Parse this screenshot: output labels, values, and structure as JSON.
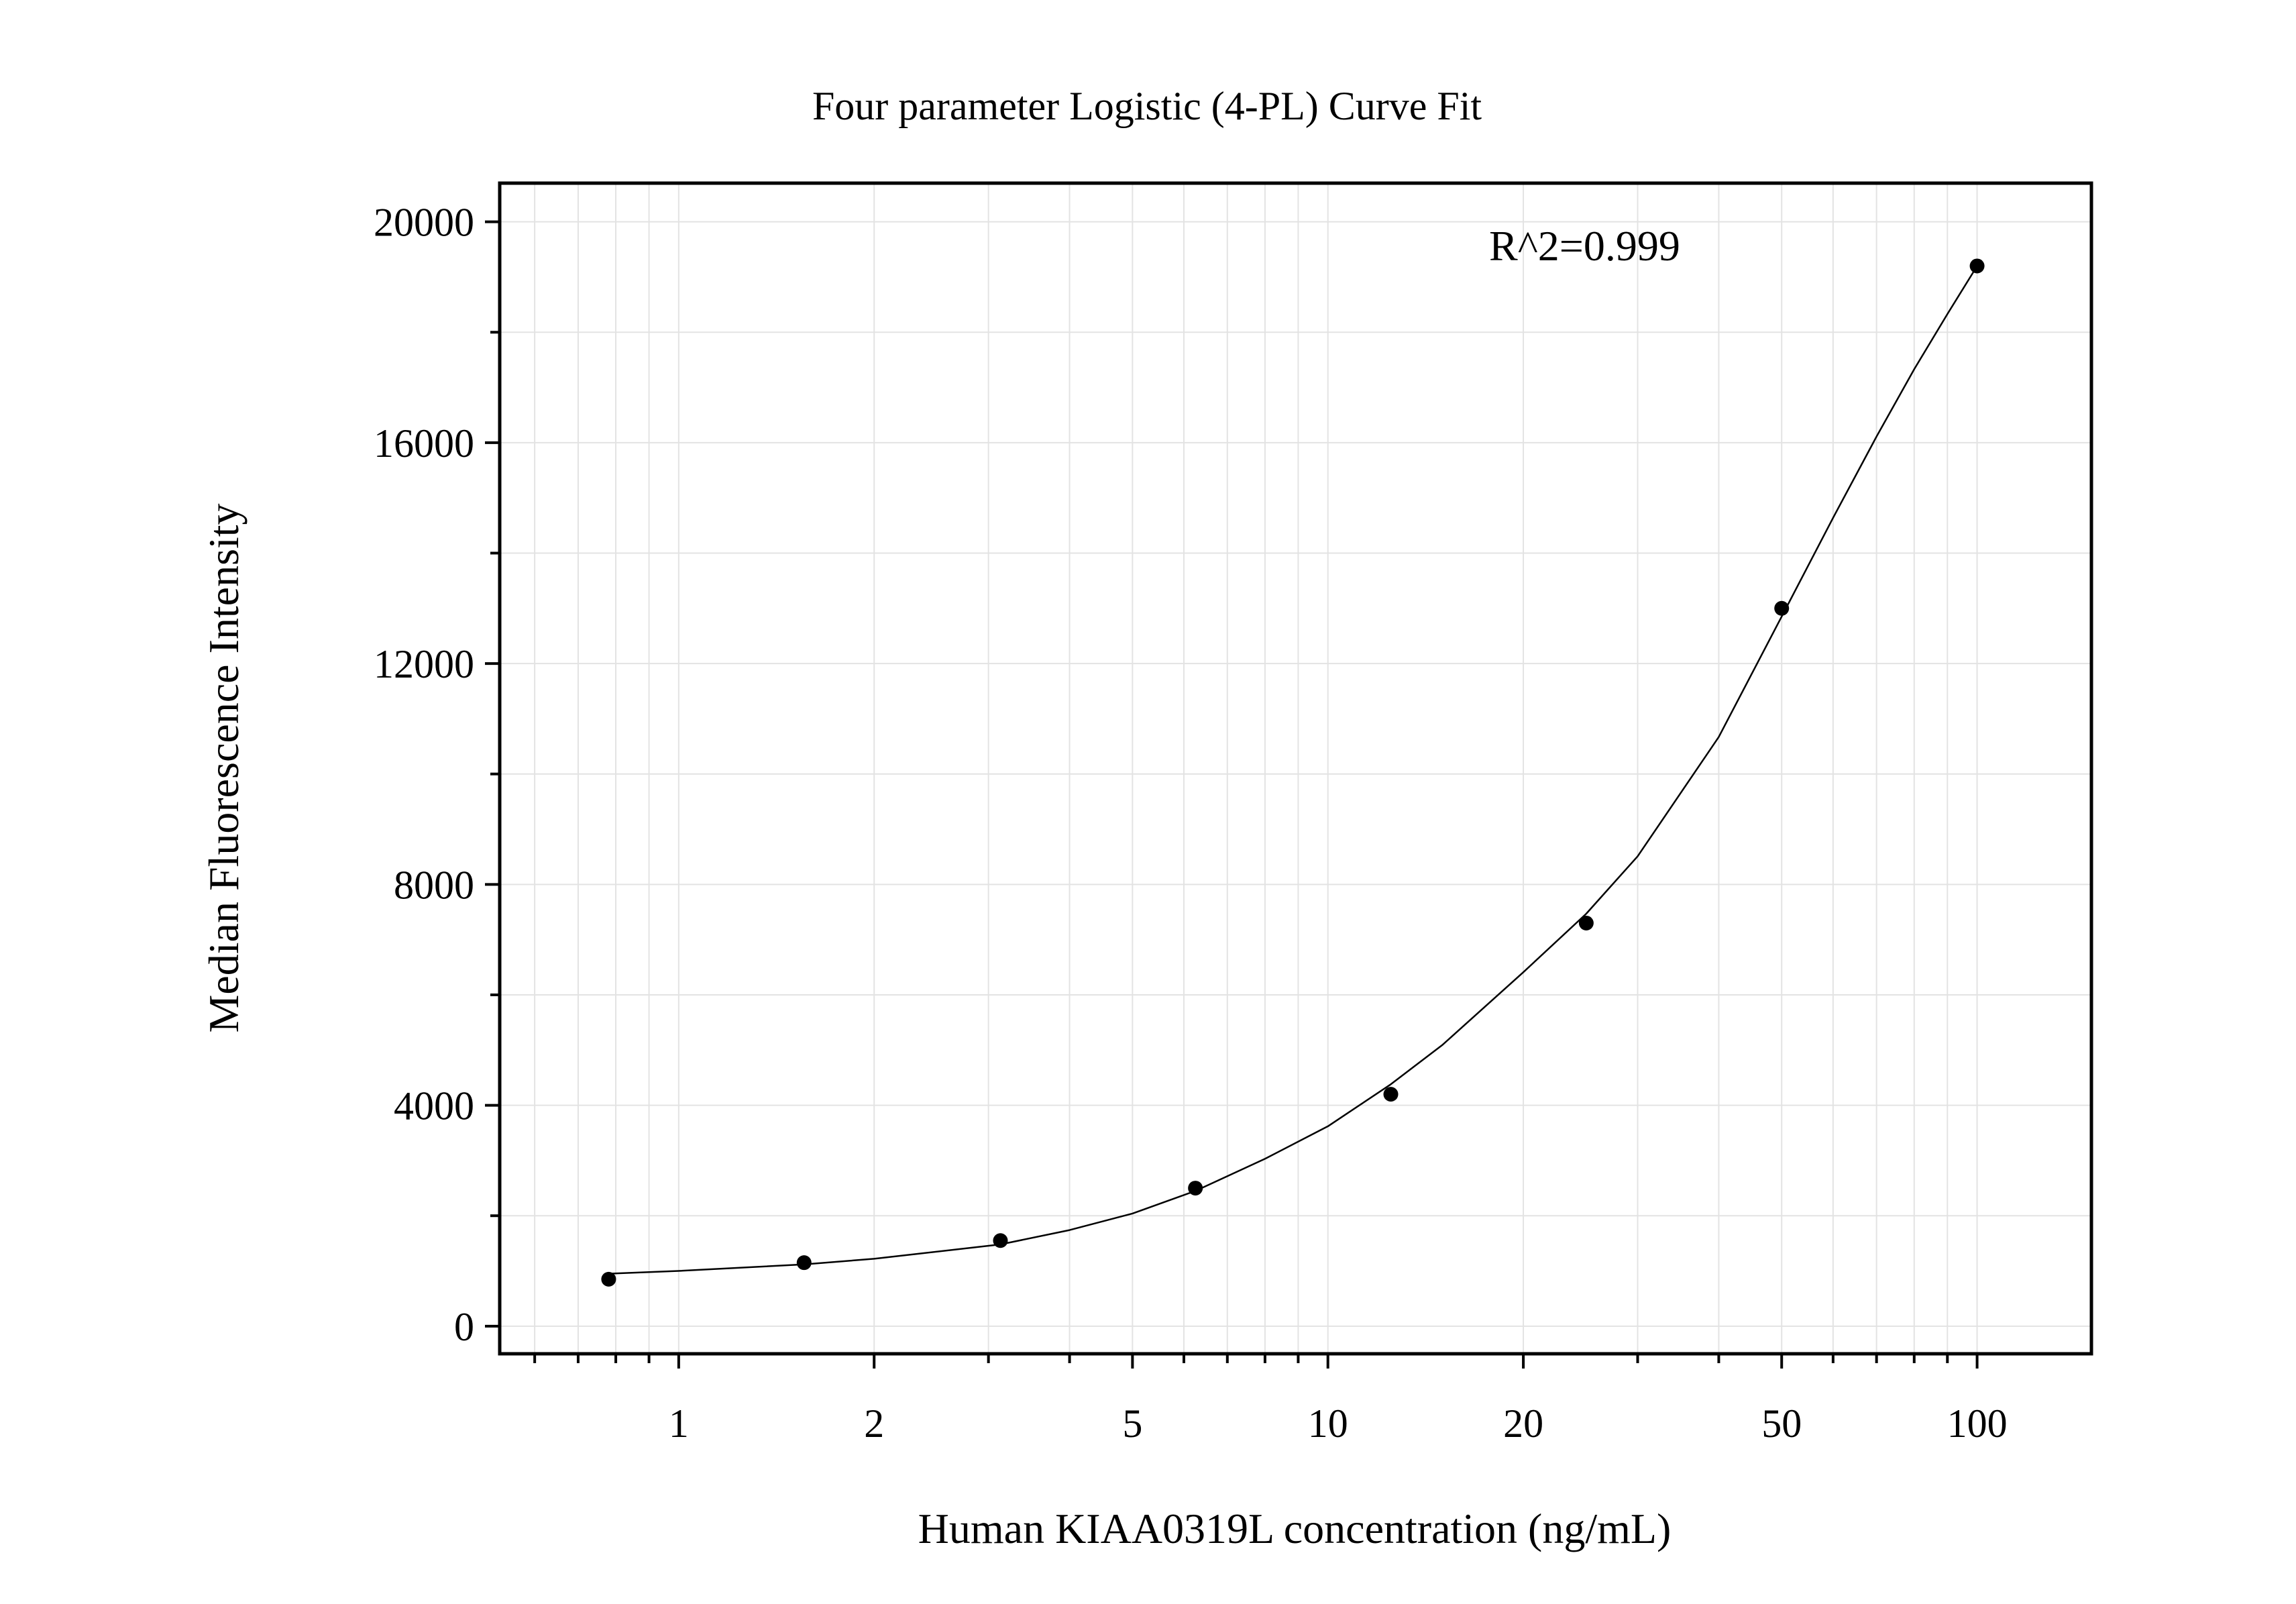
{
  "chart_data": {
    "type": "scatter",
    "title": "Four parameter Logistic (4-PL) Curve Fit",
    "xlabel": "Human KIAA0319L concentration (ng/mL)",
    "ylabel": "Median Fluorescence Intensity",
    "x_scale": "log",
    "xlim": [
      0.53,
      150
    ],
    "ylim": [
      -500,
      20700
    ],
    "x_ticks": [
      1,
      2,
      5,
      10,
      20,
      50,
      100
    ],
    "x_tick_labels": [
      "1",
      "2",
      "5",
      "10",
      "20",
      "50",
      "100"
    ],
    "y_ticks": [
      0,
      4000,
      8000,
      12000,
      16000,
      20000
    ],
    "y_tick_labels": [
      "0",
      "4000",
      "8000",
      "12000",
      "16000",
      "20000"
    ],
    "y_minor_ticks": [
      2000,
      6000,
      10000,
      14000,
      18000
    ],
    "grid": true,
    "annotation": "R^2=0.999",
    "series": [
      {
        "kind": "points",
        "x": [
          0.78,
          1.56,
          3.13,
          6.25,
          12.5,
          25,
          50,
          100
        ],
        "y": [
          850,
          1150,
          1550,
          2500,
          4200,
          7300,
          13000,
          19200
        ]
      },
      {
        "kind": "fit",
        "x": [
          0.78,
          1,
          1.56,
          2,
          3.13,
          4,
          5,
          6.25,
          8,
          10,
          12.5,
          15,
          20,
          25,
          30,
          40,
          50,
          60,
          70,
          80,
          90,
          100
        ],
        "y": [
          950,
          1000,
          1120,
          1220,
          1480,
          1740,
          2040,
          2450,
          3030,
          3620,
          4380,
          5090,
          6410,
          7470,
          8510,
          10670,
          12850,
          14640,
          16110,
          17330,
          18330,
          19200
        ]
      }
    ],
    "colors": {
      "points": "#000000",
      "curve": "#000000",
      "grid": "#e3e3e3",
      "frame": "#000000"
    }
  }
}
